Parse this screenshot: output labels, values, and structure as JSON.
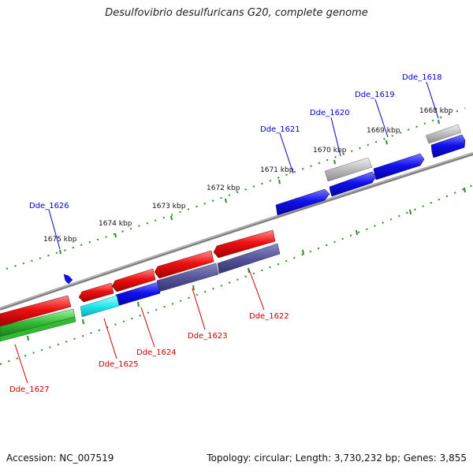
{
  "title": "Desulfovibrio desulfuricans G20, complete genome",
  "footer": {
    "accession": "Accession: NC_007519",
    "topology": "Topology: circular; Length: 3,730,232 bp; Genes: 3,855"
  },
  "colors": {
    "backbone": "#808080",
    "tick": "#2e8b2e",
    "forward_label": "#0000cc",
    "reverse_label": "#cc0000",
    "red": "#ee1111",
    "blue": "#1111ee",
    "grey": "#bbbbbb",
    "navy": "#555599",
    "cyan": "#22e6ee",
    "green": "#33bb33"
  },
  "scale_labels": [
    "1668 kbp",
    "1669 kbp",
    "1670 kbp",
    "1671 kbp",
    "1672 kbp",
    "1673 kbp",
    "1674 kbp",
    "1675 kbp"
  ],
  "gene_labels": {
    "forward": [
      "Dde_1618",
      "Dde_1619",
      "Dde_1620",
      "Dde_1621",
      "Dde_1626"
    ],
    "reverse": [
      "Dde_1622",
      "Dde_1623",
      "Dde_1624",
      "Dde_1625",
      "Dde_1627"
    ]
  }
}
